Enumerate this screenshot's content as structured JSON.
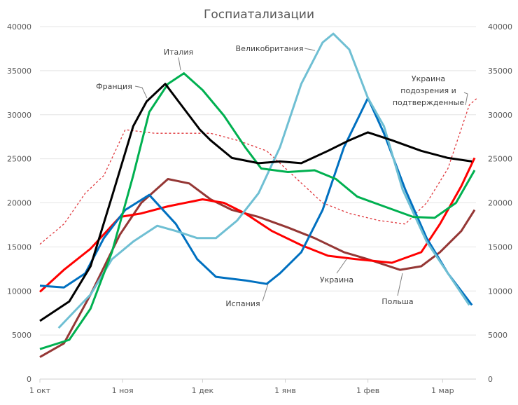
{
  "chart_data": {
    "type": "line",
    "title": "Госпиатализации",
    "xlabel": "",
    "ylabel": "",
    "ylim": [
      0,
      40000
    ],
    "y_ticks": [
      "0",
      "5000",
      "10000",
      "15000",
      "20000",
      "25000",
      "30000",
      "35000",
      "40000"
    ],
    "y2_ticks": [
      "0",
      "5000",
      "10000",
      "15000",
      "20000",
      "25000",
      "30000",
      "35000",
      "40000"
    ],
    "x_ticks": [
      {
        "date": "10-01",
        "label": "1 окт"
      },
      {
        "date": "11-01",
        "label": "1 ноя"
      },
      {
        "date": "12-01",
        "label": "1 дек"
      },
      {
        "date": "01-01",
        "label": "1 янв"
      },
      {
        "date": "02-01",
        "label": "1 фев"
      },
      {
        "date": "03-01",
        "label": "1 мар"
      }
    ],
    "grid": true,
    "legend": "inline labels",
    "series": [
      {
        "name": "Украина подозрения и подтвержденные",
        "color": "#e0393e",
        "style": "dotted",
        "points": [
          [
            "10-01",
            15300
          ],
          [
            "10-10",
            17600
          ],
          [
            "10-18",
            21100
          ],
          [
            "10-25",
            23100
          ],
          [
            "11-02",
            28300
          ],
          [
            "11-13",
            27900
          ],
          [
            "11-23",
            27900
          ],
          [
            "12-04",
            27900
          ],
          [
            "12-14",
            27100
          ],
          [
            "12-25",
            25900
          ],
          [
            "01-04",
            23100
          ],
          [
            "01-15",
            20000
          ],
          [
            "01-25",
            18800
          ],
          [
            "02-05",
            18000
          ],
          [
            "02-15",
            17600
          ],
          [
            "02-23",
            20000
          ],
          [
            "03-03",
            23900
          ],
          [
            "03-11",
            31100
          ],
          [
            "03-14",
            31900
          ]
        ]
      },
      {
        "name": "Польша",
        "color": "#953735",
        "style": "solid",
        "points": [
          [
            "10-01",
            2500
          ],
          [
            "10-10",
            4050
          ],
          [
            "10-20",
            9600
          ],
          [
            "10-31",
            16400
          ],
          [
            "11-08",
            20000
          ],
          [
            "11-18",
            22700
          ],
          [
            "11-26",
            22200
          ],
          [
            "12-04",
            20400
          ],
          [
            "12-12",
            19200
          ],
          [
            "12-22",
            18400
          ],
          [
            "01-02",
            17200
          ],
          [
            "01-12",
            16000
          ],
          [
            "01-23",
            14400
          ],
          [
            "02-01",
            13600
          ],
          [
            "02-13",
            12400
          ],
          [
            "02-21",
            12800
          ],
          [
            "02-28",
            14400
          ],
          [
            "03-08",
            16800
          ],
          [
            "03-13",
            19200
          ]
        ]
      },
      {
        "name": "Украина",
        "color": "#ff0000",
        "style": "solid",
        "points": [
          [
            "10-01",
            9900
          ],
          [
            "10-10",
            12400
          ],
          [
            "10-20",
            14800
          ],
          [
            "10-31",
            18400
          ],
          [
            "11-08",
            18800
          ],
          [
            "11-18",
            19600
          ],
          [
            "12-01",
            20400
          ],
          [
            "12-09",
            20000
          ],
          [
            "12-17",
            18800
          ],
          [
            "12-27",
            16800
          ],
          [
            "01-07",
            15200
          ],
          [
            "01-17",
            14000
          ],
          [
            "01-28",
            13600
          ],
          [
            "02-10",
            13200
          ],
          [
            "02-21",
            14400
          ],
          [
            "02-28",
            17600
          ],
          [
            "03-08",
            21900
          ],
          [
            "03-13",
            25100
          ]
        ]
      },
      {
        "name": "Испания",
        "color": "#0070c0",
        "style": "solid",
        "points": [
          [
            "10-01",
            10600
          ],
          [
            "10-10",
            10400
          ],
          [
            "10-18",
            12000
          ],
          [
            "10-25",
            16000
          ],
          [
            "11-02",
            19200
          ],
          [
            "11-11",
            20900
          ],
          [
            "11-21",
            17600
          ],
          [
            "11-29",
            13600
          ],
          [
            "12-06",
            11600
          ],
          [
            "12-17",
            11200
          ],
          [
            "12-25",
            10800
          ],
          [
            "12-30",
            12000
          ],
          [
            "01-07",
            14400
          ],
          [
            "01-15",
            19200
          ],
          [
            "01-23",
            26300
          ],
          [
            "02-01",
            31900
          ],
          [
            "02-07",
            27900
          ],
          [
            "02-15",
            21500
          ],
          [
            "02-23",
            16000
          ],
          [
            "03-03",
            12000
          ],
          [
            "03-12",
            8400
          ]
        ]
      },
      {
        "name": "Великобритания",
        "color": "#6fbfd3",
        "style": "solid",
        "points": [
          [
            "10-08",
            5800
          ],
          [
            "10-20",
            9600
          ],
          [
            "10-28",
            13600
          ],
          [
            "11-05",
            15600
          ],
          [
            "11-14",
            17400
          ],
          [
            "11-21",
            16800
          ],
          [
            "11-29",
            16000
          ],
          [
            "12-06",
            16000
          ],
          [
            "12-14",
            18000
          ],
          [
            "12-22",
            21100
          ],
          [
            "12-30",
            26300
          ],
          [
            "01-07",
            33500
          ],
          [
            "01-15",
            38200
          ],
          [
            "01-19",
            39200
          ],
          [
            "01-25",
            37400
          ],
          [
            "02-01",
            31900
          ],
          [
            "02-07",
            28700
          ],
          [
            "02-14",
            21500
          ],
          [
            "02-23",
            15600
          ],
          [
            "03-03",
            12000
          ],
          [
            "03-11",
            8400
          ]
        ]
      },
      {
        "name": "Италия",
        "color": "#00b050",
        "style": "solid",
        "points": [
          [
            "10-01",
            3400
          ],
          [
            "10-12",
            4450
          ],
          [
            "10-20",
            8000
          ],
          [
            "10-28",
            14400
          ],
          [
            "11-05",
            23100
          ],
          [
            "11-11",
            30300
          ],
          [
            "11-18",
            33500
          ],
          [
            "11-24",
            34700
          ],
          [
            "12-01",
            32800
          ],
          [
            "12-09",
            29900
          ],
          [
            "12-17",
            26300
          ],
          [
            "12-23",
            23900
          ],
          [
            "01-02",
            23500
          ],
          [
            "01-12",
            23700
          ],
          [
            "01-20",
            22700
          ],
          [
            "01-28",
            20700
          ],
          [
            "02-07",
            19600
          ],
          [
            "02-18",
            18400
          ],
          [
            "02-26",
            18300
          ],
          [
            "03-06",
            20000
          ],
          [
            "03-13",
            23700
          ]
        ]
      },
      {
        "name": "Франция",
        "color": "#000000",
        "style": "solid",
        "points": [
          [
            "10-01",
            6600
          ],
          [
            "10-12",
            8800
          ],
          [
            "10-20",
            12800
          ],
          [
            "10-28",
            20700
          ],
          [
            "11-05",
            28700
          ],
          [
            "11-10",
            31500
          ],
          [
            "11-17",
            33500
          ],
          [
            "11-22",
            31500
          ],
          [
            "11-30",
            28300
          ],
          [
            "12-04",
            27100
          ],
          [
            "12-12",
            25100
          ],
          [
            "12-22",
            24500
          ],
          [
            "12-30",
            24700
          ],
          [
            "01-07",
            24500
          ],
          [
            "01-17",
            25900
          ],
          [
            "01-25",
            27100
          ],
          [
            "02-01",
            28000
          ],
          [
            "02-10",
            27100
          ],
          [
            "02-21",
            25900
          ],
          [
            "03-03",
            25100
          ],
          [
            "03-12",
            24700
          ]
        ]
      }
    ]
  }
}
